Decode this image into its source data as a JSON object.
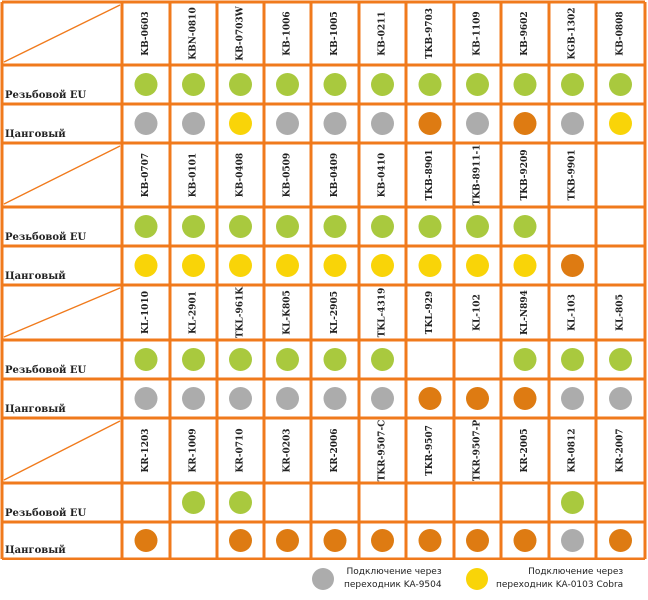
{
  "colors": {
    "border": "#f07a1c",
    "green": "#a9c93e",
    "grey": "#acacac",
    "orange": "#de7b12",
    "yellow": "#f9d408"
  },
  "table": {
    "row_labels": {
      "threaded": "Резьбовой EU",
      "collet": "Цанговый"
    },
    "blocks": [
      {
        "models": [
          "KB-0603",
          "KBN-0810",
          "KB-0703W",
          "KB-1006",
          "KB-1005",
          "KB-0211",
          "TKB-9703",
          "KB-1109",
          "KB-9602",
          "KGB-1302",
          "KB-0808"
        ],
        "threaded": [
          "green",
          "green",
          "green",
          "green",
          "green",
          "green",
          "green",
          "green",
          "green",
          "green",
          "green"
        ],
        "collet": [
          "grey",
          "grey",
          "yellow",
          "grey",
          "grey",
          "grey",
          "orange",
          "grey",
          "orange",
          "grey",
          "yellow"
        ]
      },
      {
        "models": [
          "KB-0707",
          "KB-0101",
          "KB-0408",
          "KB-0509",
          "KB-0409",
          "KB-0410",
          "TKB-8901",
          "TKB-8911-1",
          "TKB-9209",
          "TKB-9901",
          ""
        ],
        "threaded": [
          "green",
          "green",
          "green",
          "green",
          "green",
          "green",
          "green",
          "green",
          "green",
          "",
          ""
        ],
        "collet": [
          "yellow",
          "yellow",
          "yellow",
          "yellow",
          "yellow",
          "yellow",
          "yellow",
          "yellow",
          "yellow",
          "orange",
          ""
        ]
      },
      {
        "models": [
          "KL-1010",
          "KL-2901",
          "TKL-961K",
          "KL-K805",
          "KL-2905",
          "TKL-4319",
          "TKL-929",
          "KL-102",
          "KL-N894",
          "KL-103",
          "KL-805"
        ],
        "threaded": [
          "green",
          "green",
          "green",
          "green",
          "green",
          "green",
          "",
          "",
          "green",
          "green",
          "green"
        ],
        "collet": [
          "grey",
          "grey",
          "grey",
          "grey",
          "grey",
          "grey",
          "orange",
          "orange",
          "orange",
          "grey",
          "grey"
        ]
      },
      {
        "models": [
          "KR-1203",
          "KR-1009",
          "KR-0710",
          "KR-0203",
          "KR-2006",
          "TKR-9507-C",
          "TKR-9507",
          "TKR-9507-P",
          "KR-2005",
          "KR-0812",
          "KR-2007"
        ],
        "threaded": [
          "",
          "green",
          "green",
          "",
          "",
          "",
          "",
          "",
          "",
          "green",
          ""
        ],
        "collet": [
          "orange",
          "",
          "orange",
          "orange",
          "orange",
          "orange",
          "orange",
          "orange",
          "orange",
          "grey",
          "orange"
        ]
      }
    ]
  },
  "legend": {
    "grey_line1": "Подключение через",
    "grey_line2": "переходник KA-9504",
    "yellow_line1": "Подключение через",
    "yellow_line2": "переходник KA-0103 Cobra"
  }
}
